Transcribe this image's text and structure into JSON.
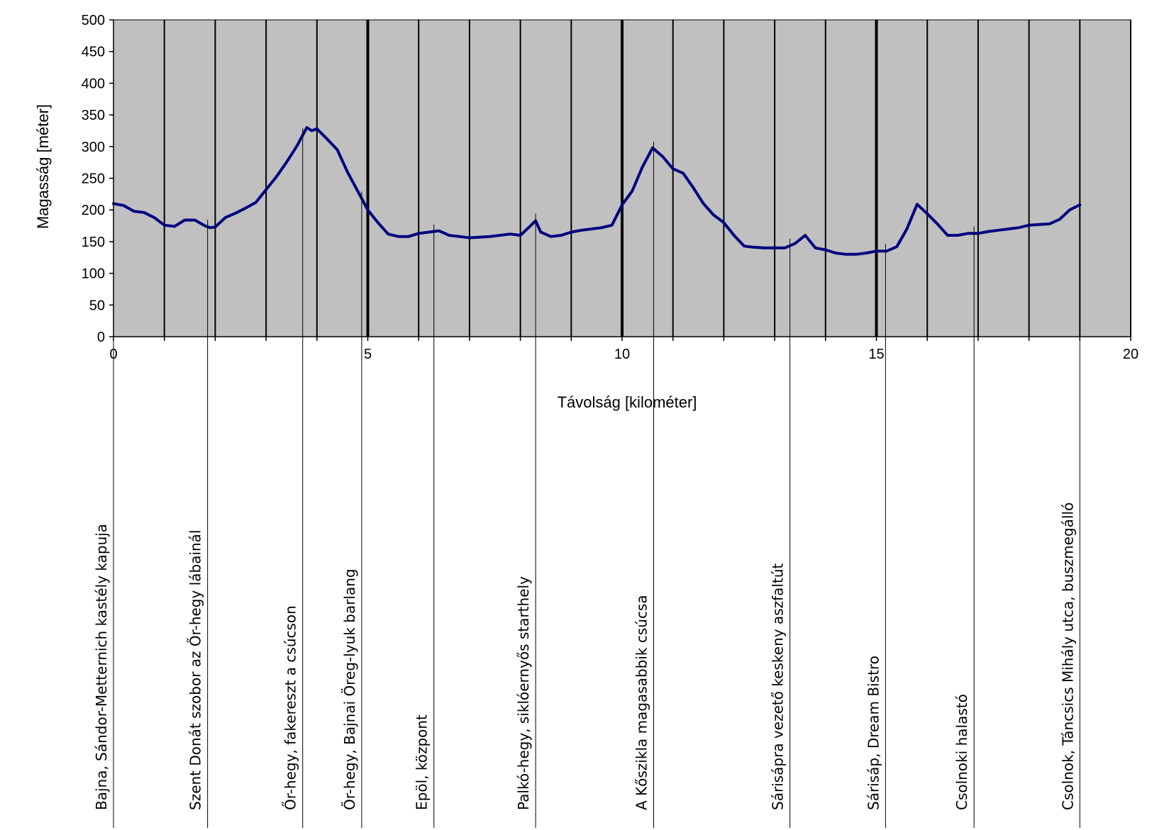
{
  "chart_data": {
    "type": "line",
    "title": "",
    "xlabel": "Távolság [kilométer]",
    "ylabel": "Magasság [méter]",
    "xlim": [
      0,
      20
    ],
    "ylim": [
      0,
      500
    ],
    "x_ticks": [
      0,
      5,
      10,
      15,
      20
    ],
    "y_ticks": [
      0,
      50,
      100,
      150,
      200,
      250,
      300,
      350,
      400,
      450,
      500
    ],
    "x_tick_labels": [
      "0",
      "5",
      "10",
      "15",
      "20"
    ],
    "y_tick_labels": [
      "0",
      "50",
      "100",
      "150",
      "200",
      "250",
      "300",
      "350",
      "400",
      "450",
      "500"
    ],
    "grid": "vertical lines every 1 km, thicker at 5, 10, 15",
    "plot_background": "#c0c0c0",
    "series": [
      {
        "color": "#000080",
        "x": [
          0,
          0.2,
          0.4,
          0.6,
          0.8,
          1.0,
          1.2,
          1.4,
          1.6,
          1.8,
          1.9,
          2.0,
          2.2,
          2.4,
          2.6,
          2.8,
          3.0,
          3.2,
          3.4,
          3.6,
          3.7,
          3.8,
          3.9,
          4.0,
          4.2,
          4.4,
          4.6,
          4.8,
          5.0,
          5.2,
          5.4,
          5.6,
          5.8,
          6.0,
          6.2,
          6.4,
          6.6,
          6.8,
          7.0,
          7.2,
          7.4,
          7.6,
          7.8,
          8.0,
          8.2,
          8.3,
          8.4,
          8.6,
          8.8,
          9.0,
          9.2,
          9.4,
          9.6,
          9.8,
          10.0,
          10.2,
          10.4,
          10.6,
          10.8,
          11.0,
          11.2,
          11.4,
          11.6,
          11.8,
          12.0,
          12.2,
          12.4,
          12.6,
          12.8,
          13.0,
          13.2,
          13.4,
          13.6,
          13.8,
          14.0,
          14.2,
          14.4,
          14.6,
          14.8,
          15.0,
          15.2,
          15.4,
          15.6,
          15.8,
          16.0,
          16.2,
          16.4,
          16.6,
          16.8,
          17.0,
          17.2,
          17.4,
          17.6,
          17.8,
          18.0,
          18.2,
          18.4,
          18.6,
          18.8,
          19.0
        ],
        "y": [
          210,
          207,
          198,
          196,
          188,
          176,
          174,
          184,
          184,
          175,
          172,
          173,
          188,
          195,
          203,
          212,
          232,
          252,
          275,
          300,
          315,
          330,
          325,
          328,
          312,
          295,
          260,
          230,
          200,
          180,
          162,
          158,
          158,
          163,
          165,
          167,
          160,
          158,
          156,
          157,
          158,
          160,
          162,
          160,
          175,
          183,
          165,
          158,
          160,
          165,
          168,
          170,
          172,
          176,
          208,
          230,
          268,
          298,
          284,
          265,
          258,
          235,
          210,
          192,
          180,
          160,
          143,
          141,
          140,
          140,
          140,
          147,
          160,
          140,
          137,
          132,
          130,
          130,
          132,
          135,
          135,
          142,
          170,
          209,
          194,
          178,
          160,
          160,
          163,
          163,
          166,
          168,
          170,
          172,
          176,
          177,
          178,
          185,
          200,
          208
        ]
      }
    ],
    "waypoints": [
      {
        "km": 0,
        "label": "Bajna, Sándor-Metternich kastély kapuja"
      },
      {
        "km": 1.85,
        "label": "Szent Donát szobor az Őr-hegy lábainál"
      },
      {
        "km": 3.72,
        "label": "Őr-hegy, fakereszt a csúcson"
      },
      {
        "km": 4.88,
        "label": "Őr-hegy, Bajnai Öreg-lyuk barlang"
      },
      {
        "km": 6.3,
        "label": "Epöl, központ"
      },
      {
        "km": 8.3,
        "label": "Palkó-hegy, siklóernyős starthely"
      },
      {
        "km": 10.62,
        "label": "A Kőszikla magasabbik csúcsa"
      },
      {
        "km": 13.3,
        "label": "Sárisápra vezető keskeny aszfaltút"
      },
      {
        "km": 15.18,
        "label": "Sárisáp, Dream Bistro"
      },
      {
        "km": 16.92,
        "label": "Csolnoki halastó"
      },
      {
        "km": 19.0,
        "label": "Csolnok, Táncsics Mihály utca, buszmegálló"
      }
    ]
  }
}
